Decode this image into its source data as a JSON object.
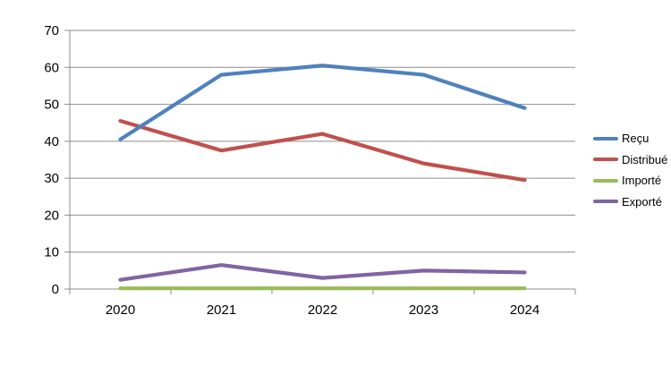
{
  "chart_data": {
    "type": "line",
    "categories": [
      "2020",
      "2021",
      "2022",
      "2023",
      "2024"
    ],
    "series": [
      {
        "name": "Reçu",
        "color": "#4F81BD",
        "values": [
          40.5,
          58,
          60.5,
          58,
          49
        ]
      },
      {
        "name": "Distribué",
        "color": "#C0504D",
        "values": [
          45.5,
          37.5,
          42,
          34,
          29.5
        ]
      },
      {
        "name": "Importé",
        "color": "#9BBB59",
        "values": [
          0.2,
          0.2,
          0.2,
          0.2,
          0.2
        ]
      },
      {
        "name": "Exporté",
        "color": "#8064A2",
        "values": [
          2.5,
          6.5,
          3,
          5,
          4.5
        ]
      }
    ],
    "y_ticks": [
      0,
      10,
      20,
      30,
      40,
      50,
      60,
      70
    ],
    "y_ticklabels": [
      "0",
      "10",
      "20",
      "30",
      "40",
      "50",
      "60",
      "70"
    ],
    "ylim": [
      0,
      70
    ],
    "grid": true,
    "legend_position": "right",
    "gridline_color": "#8C8C8C",
    "axis_color": "#8C8C8C",
    "background": "#FFFFFF",
    "paint_order_note": "blue series drawn on top of red"
  }
}
